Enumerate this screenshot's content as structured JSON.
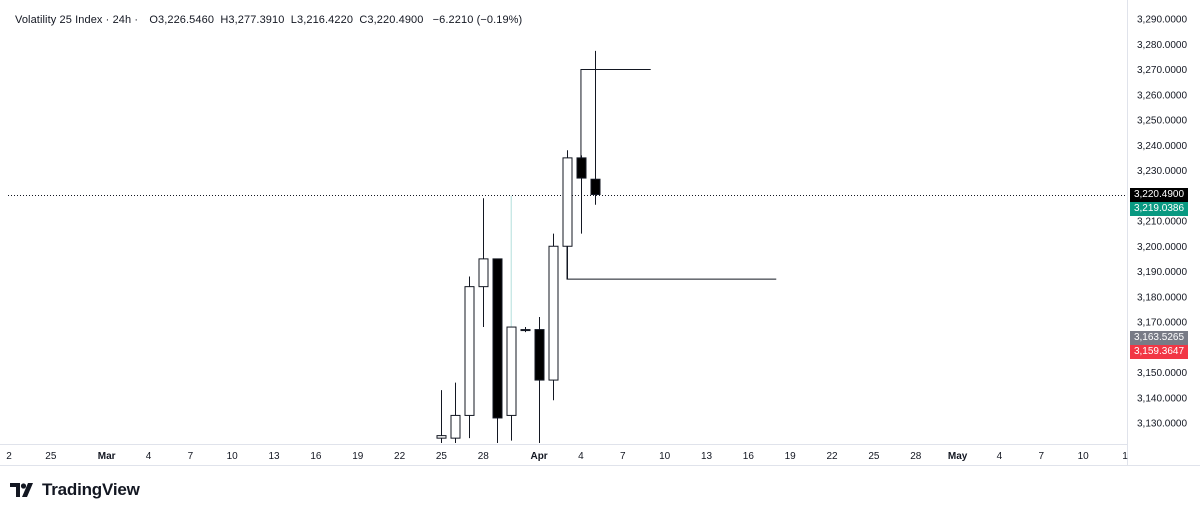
{
  "legend": {
    "symbol": "Volatility 25 Index · 24h ·",
    "open_label": "O",
    "open": "3,226.5460",
    "high_label": "H",
    "high": "3,277.3910",
    "low_label": "L",
    "low": "3,216.4220",
    "close_label": "C",
    "close": "3,220.4900",
    "change": "−6.2210 (−0.19%)"
  },
  "price_tags": {
    "last": {
      "text": "3,220.4900",
      "value": 3220.49,
      "color": "#000000"
    },
    "tag2": {
      "text": "3,219.0386",
      "value": 3219.0386,
      "color": "#089981"
    },
    "tag3": {
      "text": "3,163.5265",
      "value": 3163.5265,
      "color": "#787b86"
    },
    "tag4": {
      "text": "3,159.3647",
      "value": 3159.3647,
      "color": "#f23645"
    }
  },
  "brand": {
    "name": "TradingView"
  },
  "chart_data": {
    "type": "candlestick",
    "y_axis": {
      "range": [
        3120,
        3292
      ],
      "ticks": [
        3130,
        3140,
        3150,
        3160,
        3170,
        3180,
        3190,
        3200,
        3210,
        3220,
        3230,
        3240,
        3250,
        3260,
        3270,
        3280,
        3290
      ],
      "tick_labels": [
        "3,130.0000",
        "3,140.0000",
        "3,150.0000",
        "3,160.0000",
        "3,170.0000",
        "3,180.0000",
        "3,190.0000",
        "3,200.0000",
        "3,210.0000",
        "3,220.0000",
        "3,230.0000",
        "3,240.0000",
        "3,250.0000",
        "3,260.0000",
        "3,270.0000",
        "3,280.0000",
        "3,290.0000"
      ]
    },
    "x_axis": {
      "start": "2025-02-22",
      "ticks": [
        {
          "label": "2",
          "date": "2025-02-22"
        },
        {
          "label": "25",
          "date": "2025-02-25"
        },
        {
          "label": "Mar",
          "date": "2025-03-01",
          "bold": true
        },
        {
          "label": "4",
          "date": "2025-03-04"
        },
        {
          "label": "7",
          "date": "2025-03-07"
        },
        {
          "label": "10",
          "date": "2025-03-10"
        },
        {
          "label": "13",
          "date": "2025-03-13"
        },
        {
          "label": "16",
          "date": "2025-03-16"
        },
        {
          "label": "19",
          "date": "2025-03-19"
        },
        {
          "label": "22",
          "date": "2025-03-22"
        },
        {
          "label": "25",
          "date": "2025-03-25"
        },
        {
          "label": "28",
          "date": "2025-03-28"
        },
        {
          "label": "Apr",
          "date": "2025-04-01",
          "bold": true
        },
        {
          "label": "4",
          "date": "2025-04-04"
        },
        {
          "label": "7",
          "date": "2025-04-07"
        },
        {
          "label": "10",
          "date": "2025-04-10"
        },
        {
          "label": "13",
          "date": "2025-04-13"
        },
        {
          "label": "16",
          "date": "2025-04-16"
        },
        {
          "label": "19",
          "date": "2025-04-19"
        },
        {
          "label": "22",
          "date": "2025-04-22"
        },
        {
          "label": "25",
          "date": "2025-04-25"
        },
        {
          "label": "28",
          "date": "2025-04-28"
        },
        {
          "label": "May",
          "date": "2025-05-01",
          "bold": true
        },
        {
          "label": "4",
          "date": "2025-05-04"
        },
        {
          "label": "7",
          "date": "2025-05-07"
        },
        {
          "label": "10",
          "date": "2025-05-10"
        },
        {
          "label": "1",
          "date": "2025-05-13"
        }
      ]
    },
    "candles": [
      {
        "date": "2025-03-25",
        "open": 3124,
        "high": 3143,
        "low": 3118,
        "close": 3125
      },
      {
        "date": "2025-03-26",
        "open": 3124,
        "high": 3146,
        "low": 3118,
        "close": 3133
      },
      {
        "date": "2025-03-27",
        "open": 3133,
        "high": 3188,
        "low": 3124,
        "close": 3184
      },
      {
        "date": "2025-03-28",
        "open": 3184,
        "high": 3219,
        "low": 3168,
        "close": 3195
      },
      {
        "date": "2025-03-29",
        "open": 3195,
        "high": 3195,
        "low": 3118,
        "close": 3132
      },
      {
        "date": "2025-03-30",
        "open": 3133,
        "high": 3168,
        "low": 3123,
        "close": 3168
      },
      {
        "date": "2025-03-31",
        "open": 3167,
        "high": 3168,
        "low": 3166,
        "close": 3167
      },
      {
        "date": "2025-04-01",
        "open": 3167,
        "high": 3172,
        "low": 3121,
        "close": 3147
      },
      {
        "date": "2025-04-02",
        "open": 3147,
        "high": 3205,
        "low": 3139,
        "close": 3200
      },
      {
        "date": "2025-04-03",
        "open": 3200,
        "high": 3238,
        "low": 3187,
        "close": 3235
      },
      {
        "date": "2025-04-04",
        "open": 3235,
        "high": 3236,
        "low": 3205,
        "close": 3227
      },
      {
        "date": "2025-04-05",
        "open": 3226.546,
        "high": 3277.391,
        "low": 3216.422,
        "close": 3220.49
      }
    ],
    "drawings": {
      "upper_bracket": {
        "from_date": "2025-04-04",
        "to_date": "2025-04-09",
        "price": 3270,
        "drop_to": 3235
      },
      "lower_bracket": {
        "from_date": "2025-04-03",
        "to_date": "2025-04-18",
        "price": 3187,
        "drop_to": 3200
      },
      "teal_line": {
        "date": "2025-03-30",
        "from": 3220,
        "to": 3168
      }
    },
    "current_price_line": 3220.49
  }
}
